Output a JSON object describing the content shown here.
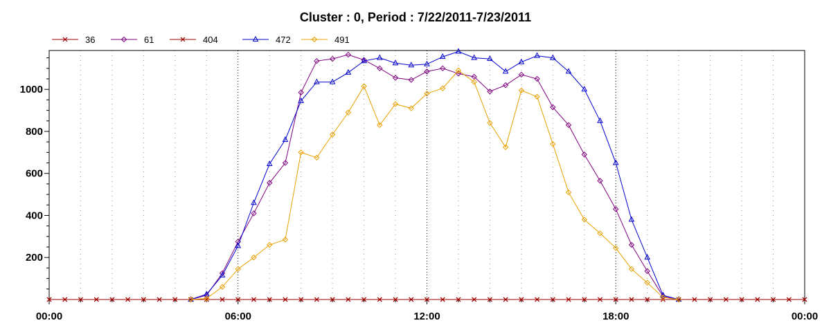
{
  "chart_data": {
    "type": "line",
    "title": "Cluster : 0, Period : 7/22/2011-7/23/2011",
    "xlabel": "",
    "ylabel": "",
    "x_tick_labels": [
      "00:00",
      "06:00",
      "12:00",
      "18:00",
      "00:00"
    ],
    "y_ticks": [
      200,
      400,
      600,
      800,
      1000
    ],
    "xlim": [
      0,
      24
    ],
    "ylim": [
      0,
      1185
    ],
    "x_unit": "hours",
    "legend_position": "top-left",
    "grid": true,
    "x": [
      0,
      0.5,
      1,
      1.5,
      2,
      2.5,
      3,
      3.5,
      4,
      4.5,
      5,
      5.5,
      6,
      6.5,
      7,
      7.5,
      8,
      8.5,
      9,
      9.5,
      10,
      10.5,
      11,
      11.5,
      12,
      12.5,
      13,
      13.5,
      14,
      14.5,
      15,
      15.5,
      16,
      16.5,
      17,
      17.5,
      18,
      18.5,
      19,
      19.5,
      20,
      20.5,
      21,
      21.5,
      22,
      22.5,
      23,
      23.5,
      24
    ],
    "series": [
      {
        "name": "36",
        "color": "#a00000",
        "marker": "x",
        "values": [
          0,
          0,
          0,
          0,
          0,
          0,
          0,
          0,
          0,
          0,
          0,
          0,
          0,
          0,
          0,
          0,
          0,
          0,
          0,
          0,
          0,
          0,
          0,
          0,
          0,
          0,
          0,
          0,
          0,
          0,
          0,
          0,
          0,
          0,
          0,
          0,
          0,
          0,
          0,
          0,
          0,
          0,
          0,
          0,
          0,
          0,
          0,
          0,
          0
        ]
      },
      {
        "name": "61",
        "color": "#800080",
        "marker": "diamond",
        "values": [
          null,
          null,
          null,
          null,
          null,
          null,
          null,
          null,
          null,
          0,
          20,
          125,
          275,
          410,
          555,
          650,
          985,
          1135,
          1145,
          1165,
          1140,
          1100,
          1055,
          1045,
          1085,
          1100,
          1075,
          1060,
          990,
          1020,
          1070,
          1050,
          915,
          830,
          690,
          565,
          430,
          260,
          135,
          15,
          0,
          null,
          null,
          null,
          null,
          null,
          null,
          null,
          null
        ]
      },
      {
        "name": "404",
        "color": "#a00000",
        "marker": "x",
        "values": [
          0,
          0,
          0,
          0,
          0,
          0,
          0,
          0,
          0,
          0,
          0,
          0,
          0,
          0,
          0,
          0,
          0,
          0,
          0,
          0,
          0,
          0,
          0,
          0,
          0,
          0,
          0,
          0,
          0,
          0,
          0,
          0,
          0,
          0,
          0,
          0,
          0,
          0,
          0,
          0,
          0,
          0,
          0,
          0,
          0,
          0,
          0,
          0,
          0
        ]
      },
      {
        "name": "472",
        "color": "#0000cc",
        "marker": "triangle",
        "values": [
          null,
          null,
          null,
          null,
          null,
          null,
          null,
          null,
          null,
          0,
          25,
          115,
          255,
          460,
          645,
          760,
          945,
          1035,
          1035,
          1080,
          1135,
          1150,
          1125,
          1115,
          1120,
          1155,
          1180,
          1150,
          1145,
          1085,
          1130,
          1160,
          1150,
          1085,
          1000,
          850,
          650,
          380,
          200,
          20,
          0,
          null,
          null,
          null,
          null,
          null,
          null,
          null,
          null
        ]
      },
      {
        "name": "491",
        "color": "#e8a000",
        "marker": "diamond",
        "values": [
          null,
          null,
          null,
          null,
          null,
          null,
          null,
          null,
          null,
          0,
          5,
          60,
          145,
          200,
          260,
          285,
          700,
          675,
          785,
          890,
          1015,
          830,
          930,
          910,
          980,
          1005,
          1090,
          1035,
          840,
          725,
          995,
          965,
          740,
          510,
          380,
          315,
          245,
          145,
          80,
          10,
          0,
          null,
          null,
          null,
          null,
          null,
          null,
          null,
          null
        ]
      }
    ]
  }
}
